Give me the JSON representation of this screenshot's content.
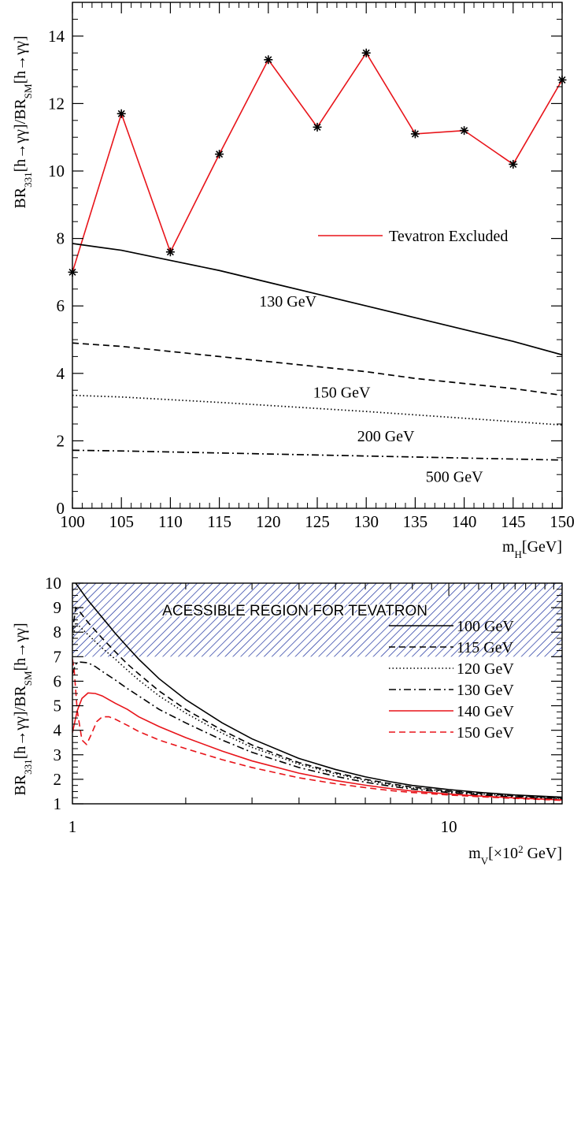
{
  "chart_data": [
    {
      "type": "line",
      "xlabel": "m",
      "xlabel_sub": "H",
      "xlabel_unit": "[GeV]",
      "ylabel": {
        "a": "BR",
        "a_sub": "331",
        "b": "[h→γγ]/BR",
        "b_sub": "SM",
        "c": "[h→γγ]"
      },
      "xlim": [
        100,
        150
      ],
      "ylim": [
        0,
        15
      ],
      "xticks": [
        100,
        105,
        110,
        115,
        120,
        125,
        130,
        135,
        140,
        145,
        150
      ],
      "yticks": [
        0,
        2,
        4,
        6,
        8,
        10,
        12,
        14
      ],
      "legend": {
        "placement": "right",
        "entries": [
          {
            "name": "Tevatron Excluded",
            "color": "#e8141a"
          }
        ]
      },
      "series": [
        {
          "name": "Tevatron Excluded",
          "style": "solid-markers",
          "color": "#e8141a",
          "x": [
            100,
            105,
            110,
            115,
            120,
            125,
            130,
            135,
            140,
            145,
            150
          ],
          "y": [
            7.0,
            11.7,
            7.6,
            10.5,
            13.3,
            11.3,
            13.5,
            11.1,
            11.2,
            10.2,
            12.7
          ]
        },
        {
          "name": "130 GeV",
          "style": "solid",
          "color": "#000000",
          "x": [
            100,
            105,
            110,
            115,
            120,
            125,
            130,
            135,
            140,
            145,
            150
          ],
          "y": [
            7.85,
            7.65,
            7.35,
            7.05,
            6.7,
            6.35,
            6.0,
            5.65,
            5.3,
            4.95,
            4.55
          ]
        },
        {
          "name": "150 GeV",
          "style": "dashed",
          "color": "#000000",
          "x": [
            100,
            105,
            110,
            115,
            120,
            125,
            130,
            135,
            140,
            145,
            150
          ],
          "y": [
            4.9,
            4.8,
            4.65,
            4.5,
            4.35,
            4.2,
            4.05,
            3.85,
            3.7,
            3.55,
            3.35
          ]
        },
        {
          "name": "200 GeV",
          "style": "dotted",
          "color": "#000000",
          "x": [
            100,
            105,
            110,
            115,
            120,
            125,
            130,
            135,
            140,
            145,
            150
          ],
          "y": [
            3.35,
            3.3,
            3.22,
            3.14,
            3.05,
            2.96,
            2.87,
            2.77,
            2.67,
            2.57,
            2.47
          ]
        },
        {
          "name": "500 GeV",
          "style": "dashdot",
          "color": "#000000",
          "x": [
            100,
            105,
            110,
            115,
            120,
            125,
            130,
            135,
            140,
            145,
            150
          ],
          "y": [
            1.72,
            1.7,
            1.67,
            1.64,
            1.61,
            1.58,
            1.55,
            1.52,
            1.49,
            1.46,
            1.43
          ]
        }
      ],
      "curve_labels": [
        {
          "text": "130 GeV",
          "x": 122,
          "y": 6.15
        },
        {
          "text": "150 GeV",
          "x": 127.5,
          "y": 3.45
        },
        {
          "text": "200 GeV",
          "x": 132,
          "y": 2.15
        },
        {
          "text": "500 GeV",
          "x": 139,
          "y": 0.95
        }
      ]
    },
    {
      "type": "line",
      "xscale": "log",
      "xlabel": "m",
      "xlabel_sub": "V",
      "xlabel_unit_pre": "[×10",
      "xlabel_unit_sup": "2",
      "xlabel_unit_post": " GeV]",
      "ylabel": {
        "a": "BR",
        "a_sub": "331",
        "b": "[h→γγ]/BR",
        "b_sub": "SM",
        "c": "[h→γγ]"
      },
      "xlim": [
        1,
        20
      ],
      "ylim": [
        1,
        10
      ],
      "xticks": [
        1,
        10
      ],
      "yticks": [
        1,
        2,
        3,
        4,
        5,
        6,
        7,
        8,
        9,
        10
      ],
      "region": {
        "label": "ACESSIBLE REGION FOR TEVATRON",
        "y_from": 7,
        "y_to": 10,
        "color": "#1a2f9e"
      },
      "legend": {
        "placement": "right"
      },
      "series": [
        {
          "name": "100 GeV",
          "style": "solid",
          "color": "#000000",
          "x": [
            1.02,
            1.1,
            1.2,
            1.3,
            1.4,
            1.5,
            1.7,
            2,
            2.5,
            3,
            4,
            5,
            6,
            7,
            8,
            10,
            12,
            15,
            20
          ],
          "y": [
            10.0,
            9.3,
            8.6,
            7.95,
            7.4,
            6.9,
            6.1,
            5.25,
            4.3,
            3.65,
            2.85,
            2.4,
            2.1,
            1.9,
            1.75,
            1.58,
            1.47,
            1.36,
            1.27
          ]
        },
        {
          "name": "115 GeV",
          "style": "dashed",
          "color": "#000000",
          "x": [
            1,
            1.02,
            1.05,
            1.1,
            1.2,
            1.3,
            1.4,
            1.5,
            1.7,
            2,
            2.5,
            3,
            4,
            5,
            6,
            7,
            8,
            10,
            12,
            15,
            20
          ],
          "y": [
            8.0,
            9.0,
            8.8,
            8.4,
            7.75,
            7.2,
            6.7,
            6.3,
            5.6,
            4.85,
            4.0,
            3.4,
            2.68,
            2.27,
            2.0,
            1.82,
            1.68,
            1.52,
            1.43,
            1.33,
            1.24
          ]
        },
        {
          "name": "120 GeV",
          "style": "dotted",
          "color": "#000000",
          "x": [
            1,
            1.02,
            1.05,
            1.1,
            1.2,
            1.3,
            1.4,
            1.5,
            1.7,
            2,
            2.5,
            3,
            4,
            5,
            6,
            7,
            8,
            10,
            12,
            15,
            20
          ],
          "y": [
            7.6,
            8.4,
            8.2,
            7.9,
            7.35,
            6.9,
            6.45,
            6.05,
            5.4,
            4.7,
            3.88,
            3.3,
            2.62,
            2.22,
            1.96,
            1.78,
            1.65,
            1.5,
            1.41,
            1.31,
            1.22
          ]
        },
        {
          "name": "130 GeV",
          "style": "dashdot",
          "color": "#000000",
          "x": [
            1,
            1.02,
            1.05,
            1.1,
            1.15,
            1.2,
            1.3,
            1.4,
            1.5,
            1.7,
            2,
            2.5,
            3,
            4,
            5,
            6,
            7,
            8,
            10,
            12,
            15,
            20
          ],
          "y": [
            6.3,
            6.7,
            6.78,
            6.75,
            6.6,
            6.4,
            6.05,
            5.7,
            5.4,
            4.85,
            4.3,
            3.6,
            3.1,
            2.48,
            2.12,
            1.88,
            1.72,
            1.6,
            1.46,
            1.37,
            1.28,
            1.2
          ]
        },
        {
          "name": "140 GeV",
          "style": "solid",
          "color": "#e8141a",
          "x": [
            1,
            1.03,
            1.06,
            1.1,
            1.15,
            1.2,
            1.3,
            1.4,
            1.5,
            1.7,
            2,
            2.5,
            3,
            4,
            5,
            6,
            7,
            8,
            10,
            12,
            15,
            20
          ],
          "y": [
            3.9,
            4.8,
            5.3,
            5.52,
            5.5,
            5.4,
            5.1,
            4.85,
            4.55,
            4.15,
            3.7,
            3.15,
            2.75,
            2.25,
            1.95,
            1.76,
            1.62,
            1.52,
            1.4,
            1.32,
            1.24,
            1.16
          ]
        },
        {
          "name": "150 GeV",
          "style": "dashed",
          "color": "#e8141a",
          "x": [
            1,
            1.01,
            1.03,
            1.06,
            1.09,
            1.12,
            1.16,
            1.2,
            1.25,
            1.3,
            1.4,
            1.5,
            1.7,
            2,
            2.5,
            3,
            4,
            5,
            6,
            7,
            8,
            10,
            12,
            15,
            20
          ],
          "y": [
            6.9,
            6.5,
            4.8,
            3.6,
            3.42,
            3.8,
            4.35,
            4.55,
            4.55,
            4.45,
            4.2,
            3.95,
            3.6,
            3.25,
            2.8,
            2.48,
            2.06,
            1.82,
            1.66,
            1.54,
            1.46,
            1.36,
            1.29,
            1.22,
            1.14
          ]
        }
      ]
    }
  ]
}
